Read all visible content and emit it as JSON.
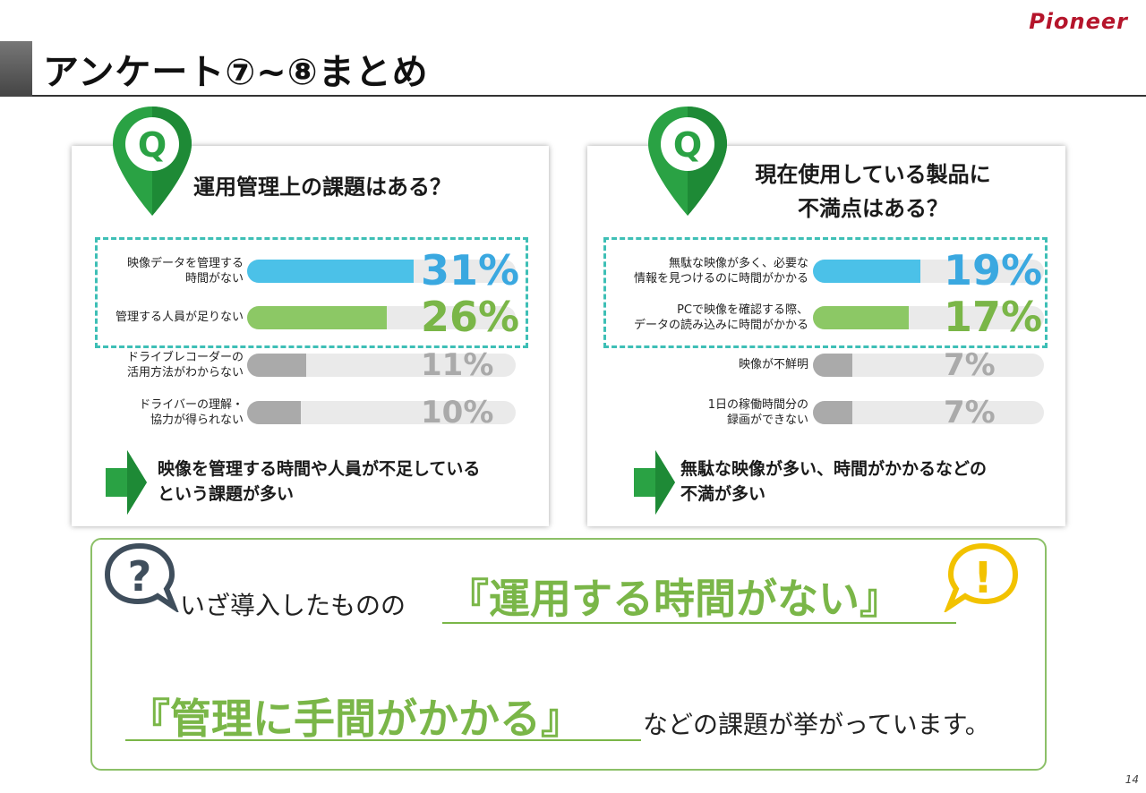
{
  "brand": "Pioneer",
  "page_title": "アンケート⑦~⑧まとめ",
  "page_number": "14",
  "colors": {
    "blue": "#4bc1e8",
    "green": "#8cc865",
    "gray": "#aaaaaa",
    "pin": "#2aa244",
    "dash": "#3ebfb6",
    "accent_text": "#7ab648"
  },
  "icons": {
    "pin": "q-location-pin-icon",
    "arrow": "right-arrow-icon",
    "question": "question-bubble-icon",
    "exclaim": "exclamation-bubble-icon"
  },
  "chart_data": [
    {
      "type": "bar",
      "pin_letter": "Q",
      "title": "運用管理上の課題はある？",
      "categories": [
        "映像データを管理する\n時間がない",
        "管理する人員が足りない",
        "ドライブレコーダーの\n活用方法がわからない",
        "ドライバーの理解・\n協力が得られない"
      ],
      "values": [
        31,
        26,
        11,
        10
      ],
      "value_labels": [
        "31%",
        "26%",
        "11%",
        "10%"
      ],
      "highlighted": [
        true,
        true,
        false,
        false
      ],
      "ylim": [
        0,
        100
      ],
      "conclusion": "映像を管理する時間や人員が不足している\nという課題が多い"
    },
    {
      "type": "bar",
      "pin_letter": "Q",
      "title": "現在使用している製品に\n不満点はある？",
      "categories": [
        "無駄な映像が多く、必要な\n情報を見つけるのに時間がかかる",
        "PCで映像を確認する際、\nデータの読み込みに時間がかかる",
        "映像が不鮮明",
        "1日の稼働時間分の\n録画ができない"
      ],
      "values": [
        19,
        17,
        7,
        7
      ],
      "value_labels": [
        "19%",
        "17%",
        "7%",
        "7%"
      ],
      "highlighted": [
        true,
        true,
        false,
        false
      ],
      "ylim": [
        0,
        100
      ],
      "conclusion": "無駄な映像が多い、時間がかかるなどの\n不満が多い"
    }
  ],
  "summary": {
    "question_mark": "?",
    "exclaim_mark": "!",
    "line1_prefix": "いざ導入したものの",
    "line1_emphasis": "『運用する時間がない』",
    "line2_emphasis": "『管理に手間がかかる』",
    "line2_suffix": "などの課題が挙がっています。"
  }
}
